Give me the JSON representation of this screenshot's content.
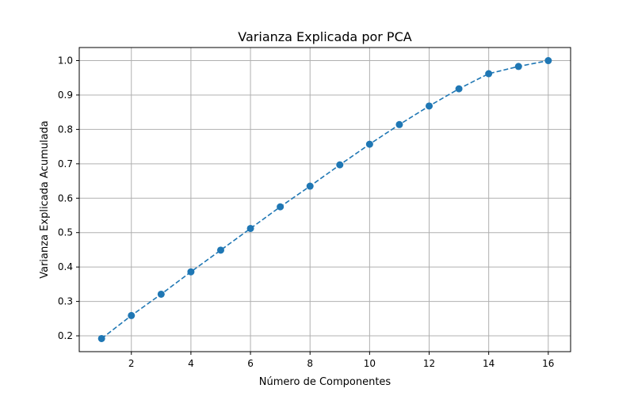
{
  "chart_data": {
    "type": "line",
    "title": "Varianza Explicada por PCA",
    "xlabel": "Número de Componentes",
    "ylabel": "Varianza Explicada Acumulada",
    "x": [
      1,
      2,
      3,
      4,
      5,
      6,
      7,
      8,
      9,
      10,
      11,
      12,
      13,
      14,
      15,
      16
    ],
    "series": [
      {
        "values": [
          0.192,
          0.259,
          0.321,
          0.386,
          0.449,
          0.512,
          0.575,
          0.635,
          0.697,
          0.757,
          0.814,
          0.868,
          0.918,
          0.962,
          0.983,
          1.0
        ],
        "color": "#1f77b4",
        "line_style": "dashed",
        "marker": "circle"
      }
    ],
    "xlim": [
      0.25,
      16.75
    ],
    "ylim": [
      0.154,
      1.038
    ],
    "xticks": [
      2,
      4,
      6,
      8,
      10,
      12,
      14,
      16
    ],
    "xtick_labels": [
      "2",
      "4",
      "6",
      "8",
      "10",
      "12",
      "14",
      "16"
    ],
    "yticks": [
      0.2,
      0.3,
      0.4,
      0.5,
      0.6,
      0.7,
      0.8,
      0.9,
      1.0
    ],
    "ytick_labels": [
      "0.2",
      "0.3",
      "0.4",
      "0.5",
      "0.6",
      "0.7",
      "0.8",
      "0.9",
      "1.0"
    ],
    "grid": true,
    "legend": "none"
  }
}
